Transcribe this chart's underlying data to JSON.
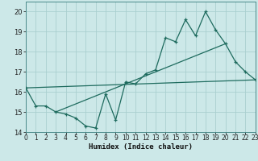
{
  "xlabel": "Humidex (Indice chaleur)",
  "bg_color": "#cce8e8",
  "line_color": "#1e6b5e",
  "grid_color": "#aacfcf",
  "x_values": [
    0,
    1,
    2,
    3,
    4,
    5,
    6,
    7,
    8,
    9,
    10,
    11,
    12,
    13,
    14,
    15,
    16,
    17,
    18,
    19,
    20,
    21,
    22,
    23
  ],
  "series1": [
    16.2,
    15.3,
    15.3,
    15.0,
    14.9,
    14.7,
    14.3,
    14.2,
    15.9,
    14.6,
    16.5,
    16.4,
    16.9,
    17.1,
    18.7,
    18.5,
    19.6,
    18.8,
    20.0,
    19.1,
    18.4,
    17.5,
    17.0,
    16.6
  ],
  "series2_x": [
    0,
    23
  ],
  "series2_y": [
    16.2,
    16.6
  ],
  "series3_x": [
    3,
    20
  ],
  "series3_y": [
    15.0,
    18.4
  ],
  "ylim": [
    14,
    20.5
  ],
  "xlim": [
    0,
    23
  ],
  "yticks": [
    14,
    15,
    16,
    17,
    18,
    19,
    20
  ],
  "xticks": [
    0,
    1,
    2,
    3,
    4,
    5,
    6,
    7,
    8,
    9,
    10,
    11,
    12,
    13,
    14,
    15,
    16,
    17,
    18,
    19,
    20,
    21,
    22,
    23
  ]
}
